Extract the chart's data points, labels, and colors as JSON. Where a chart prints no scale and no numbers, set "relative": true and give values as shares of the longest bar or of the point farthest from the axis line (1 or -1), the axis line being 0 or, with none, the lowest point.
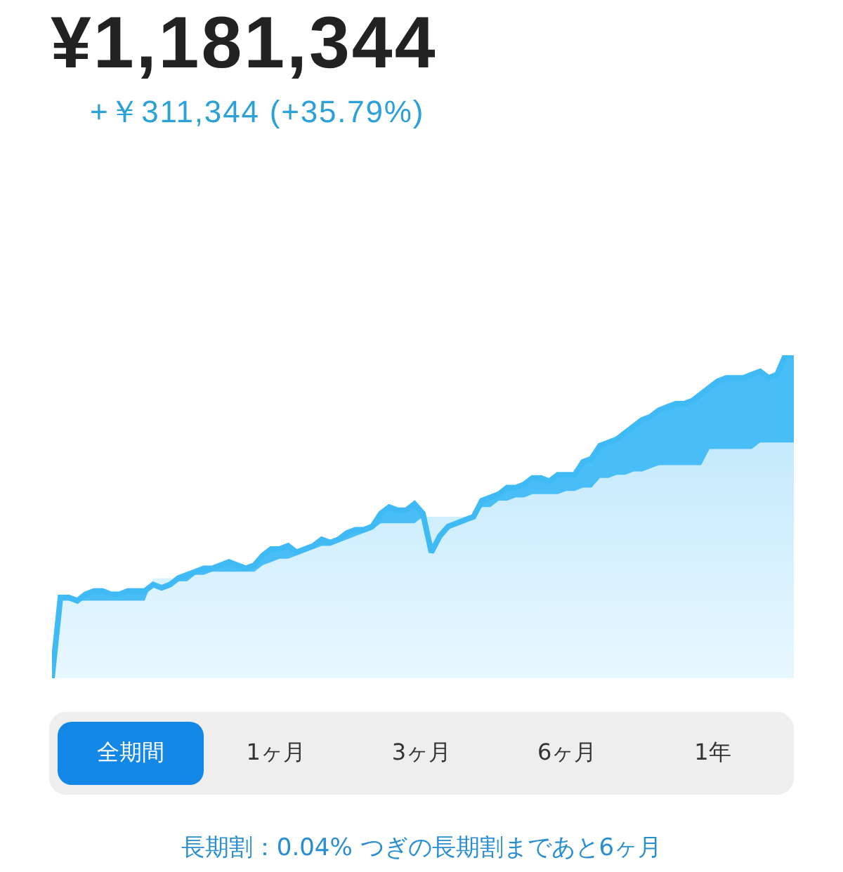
{
  "chart_data": {
    "type": "area",
    "title": "¥1,181,344",
    "subtitle": "+￥311,344 (+35.79%)",
    "relative": true,
    "categories": [
      null,
      null,
      null,
      null,
      null,
      null,
      null,
      null,
      null,
      null,
      null,
      null,
      null,
      null,
      null,
      null,
      null,
      null,
      null,
      null,
      null,
      null,
      null,
      null,
      null,
      null,
      null,
      null,
      null,
      null,
      null,
      null,
      null,
      null,
      null,
      null,
      null,
      null,
      null,
      null,
      null,
      null,
      null,
      null,
      null,
      null,
      null,
      null,
      null,
      null,
      null,
      null,
      null,
      null,
      null,
      null,
      null,
      null,
      null,
      null,
      null,
      null,
      null,
      null,
      null,
      null,
      null,
      null,
      null,
      null,
      null,
      null,
      null,
      null,
      null,
      null,
      null,
      null,
      null,
      null,
      null,
      null,
      null,
      null,
      null,
      null,
      null,
      null,
      null
    ],
    "series": [
      {
        "color": "#3fbaf5",
        "values": [
          0,
          0.25,
          0.25,
          0.24,
          0.26,
          0.27,
          0.27,
          0.26,
          0.26,
          0.27,
          0.27,
          0.27,
          0.29,
          0.28,
          0.29,
          0.31,
          0.32,
          0.33,
          0.34,
          0.34,
          0.35,
          0.36,
          0.35,
          0.34,
          0.35,
          0.38,
          0.4,
          0.4,
          0.41,
          0.39,
          0.4,
          0.41,
          0.43,
          0.42,
          0.43,
          0.45,
          0.46,
          0.46,
          0.47,
          0.51,
          0.53,
          0.52,
          0.52,
          0.54,
          0.51,
          0.39,
          0.44,
          0.47,
          0.48,
          0.49,
          0.5,
          0.55,
          0.56,
          0.57,
          0.59,
          0.59,
          0.6,
          0.62,
          0.62,
          0.61,
          0.63,
          0.63,
          0.63,
          0.67,
          0.68,
          0.72,
          0.73,
          0.74,
          0.76,
          0.78,
          0.8,
          0.81,
          0.83,
          0.84,
          0.85,
          0.85,
          0.86,
          0.88,
          0.9,
          0.92,
          0.93,
          0.93,
          0.93,
          0.94,
          0.95,
          0.93,
          0.94,
          1,
          1
        ]
      },
      {
        "color": "#c5eafc",
        "values": [
          0,
          0.24,
          0.24,
          0.24,
          0.24,
          0.24,
          0.24,
          0.24,
          0.24,
          0.24,
          0.24,
          0.24,
          0.31,
          0.31,
          0.31,
          0.3,
          0.3,
          0.32,
          0.32,
          0.33,
          0.33,
          0.33,
          0.33,
          0.33,
          0.33,
          0.35,
          0.36,
          0.37,
          0.37,
          0.38,
          0.39,
          0.4,
          0.41,
          0.41,
          0.42,
          0.43,
          0.44,
          0.45,
          0.46,
          0.48,
          0.48,
          0.48,
          0.48,
          0.48,
          0.5,
          0.5,
          0.5,
          0.5,
          0.5,
          0.5,
          0.5,
          0.53,
          0.53,
          0.55,
          0.55,
          0.56,
          0.56,
          0.57,
          0.57,
          0.57,
          0.57,
          0.58,
          0.58,
          0.59,
          0.59,
          0.62,
          0.62,
          0.63,
          0.63,
          0.64,
          0.64,
          0.65,
          0.66,
          0.66,
          0.66,
          0.66,
          0.66,
          0.66,
          0.71,
          0.71,
          0.71,
          0.71,
          0.71,
          0.71,
          0.73,
          0.73,
          0.73,
          0.73,
          0.73
        ]
      }
    ],
    "annotations": [
      "全期間",
      "1ヶ月",
      "3ヶ月",
      "6ヶ月",
      "1年",
      "長期割：0.04% つぎの長期割まであと6ヶ月"
    ]
  }
}
